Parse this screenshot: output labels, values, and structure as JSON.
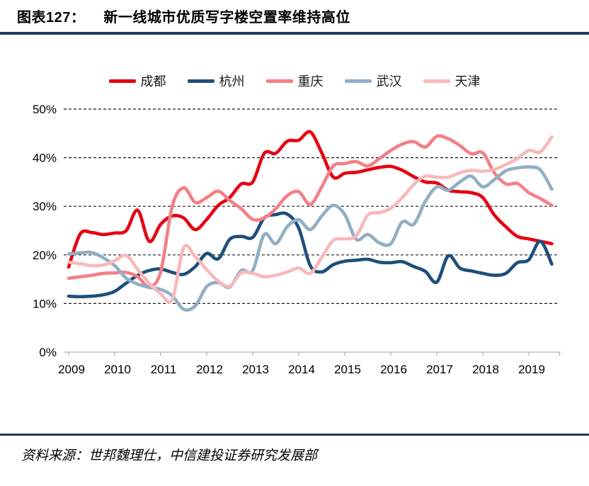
{
  "header": {
    "fig_label": "图表127：",
    "title": "新一线城市优质写字楼空置率维持高位"
  },
  "source": {
    "text": "资料来源：世邦魏理仕，中信建投证券研究发展部"
  },
  "accent_color": "#203864",
  "chart_data": {
    "type": "line",
    "title": "新一线城市优质写字楼空置率维持高位",
    "ylabel": "",
    "xlabel": "",
    "ylim": [
      0,
      50
    ],
    "grid": "horizontal-dashed",
    "legend_position": "top",
    "ytick_labels": [
      "0%",
      "10%",
      "20%",
      "30%",
      "40%",
      "50%"
    ],
    "ytick_values": [
      0,
      10,
      20,
      30,
      40,
      50
    ],
    "xtick_labels": [
      "2009",
      "2010",
      "2011",
      "2012",
      "2013",
      "2014",
      "2015",
      "2016",
      "2017",
      "2018",
      "2019"
    ],
    "xtick_values": [
      2009,
      2010,
      2011,
      2012,
      2013,
      2014,
      2015,
      2016,
      2017,
      2018,
      2019
    ],
    "x": [
      2009.0,
      2009.25,
      2009.5,
      2009.75,
      2010.0,
      2010.25,
      2010.5,
      2010.75,
      2011.0,
      2011.25,
      2011.5,
      2011.75,
      2012.0,
      2012.25,
      2012.5,
      2012.75,
      2013.0,
      2013.25,
      2013.5,
      2013.75,
      2014.0,
      2014.25,
      2014.5,
      2014.75,
      2015.0,
      2015.25,
      2015.5,
      2015.75,
      2016.0,
      2016.25,
      2016.5,
      2016.75,
      2017.0,
      2017.25,
      2017.5,
      2017.75,
      2018.0,
      2018.25,
      2018.5,
      2018.75,
      2019.0,
      2019.25,
      2019.5
    ],
    "series": [
      {
        "id": "chengdu",
        "name": "成都",
        "color": "#e60012",
        "values": [
          17.5,
          24.3,
          24.6,
          24.2,
          24.5,
          25.0,
          29.2,
          22.8,
          26.3,
          28.0,
          27.6,
          25.2,
          27.3,
          30.2,
          31.8,
          34.6,
          35.0,
          40.9,
          40.9,
          43.4,
          43.6,
          45.3,
          41.0,
          36.0,
          36.8,
          37.0,
          37.5,
          38.0,
          38.2,
          37.4,
          36.1,
          35.0,
          34.8,
          33.3,
          33.0,
          32.8,
          31.8,
          28.2,
          25.8,
          23.8,
          23.3,
          22.8,
          22.3
        ]
      },
      {
        "id": "hangzhou",
        "name": "杭州",
        "color": "#1f4e79",
        "values": [
          11.5,
          11.4,
          11.5,
          11.8,
          12.5,
          14.2,
          15.8,
          16.8,
          17.1,
          16.4,
          16.0,
          17.6,
          20.3,
          19.2,
          23.2,
          23.8,
          23.6,
          27.6,
          28.3,
          28.4,
          25.5,
          17.8,
          16.5,
          18.0,
          18.7,
          18.9,
          19.1,
          18.5,
          18.4,
          18.6,
          17.6,
          16.6,
          14.4,
          19.8,
          17.3,
          16.7,
          16.2,
          15.8,
          16.2,
          18.4,
          19.0,
          22.8,
          18.1
        ]
      },
      {
        "id": "chongqing",
        "name": "重庆",
        "color": "#f47f85",
        "values": [
          15.2,
          15.5,
          15.8,
          16.2,
          16.3,
          16.4,
          15.5,
          13.5,
          16.5,
          30.0,
          33.8,
          30.8,
          31.8,
          33.1,
          31.2,
          29.5,
          27.3,
          27.6,
          29.5,
          32.2,
          33.0,
          30.4,
          34.0,
          38.3,
          38.8,
          39.2,
          38.3,
          39.8,
          41.5,
          42.8,
          43.3,
          42.2,
          44.4,
          43.9,
          42.5,
          40.8,
          41.0,
          36.9,
          34.6,
          34.7,
          32.8,
          31.6,
          30.2
        ]
      },
      {
        "id": "wuhan",
        "name": "武汉",
        "color": "#8fafc4",
        "values": [
          20.2,
          20.4,
          20.5,
          19.4,
          17.8,
          15.2,
          14.0,
          13.3,
          12.9,
          11.6,
          8.8,
          9.5,
          13.5,
          14.3,
          13.4,
          16.8,
          16.8,
          24.2,
          22.3,
          25.8,
          27.2,
          25.2,
          28.0,
          30.2,
          28.3,
          23.2,
          24.2,
          22.5,
          22.3,
          26.8,
          26.3,
          31.0,
          34.0,
          33.3,
          35.0,
          36.2,
          34.0,
          35.5,
          37.3,
          37.9,
          38.1,
          37.5,
          33.5
        ]
      },
      {
        "id": "tianjin",
        "name": "天津",
        "color": "#f9b8ba",
        "values": [
          18.5,
          18.2,
          17.8,
          17.9,
          18.8,
          19.9,
          17.0,
          14.2,
          12.0,
          10.8,
          21.5,
          19.6,
          17.0,
          14.6,
          13.6,
          16.3,
          16.2,
          15.5,
          15.8,
          16.5,
          17.3,
          16.2,
          19.5,
          23.0,
          23.3,
          23.9,
          28.2,
          28.7,
          29.6,
          31.8,
          34.5,
          36.2,
          36.0,
          36.0,
          36.9,
          37.4,
          37.2,
          37.6,
          38.6,
          39.8,
          41.5,
          41.2,
          44.3
        ]
      }
    ]
  }
}
